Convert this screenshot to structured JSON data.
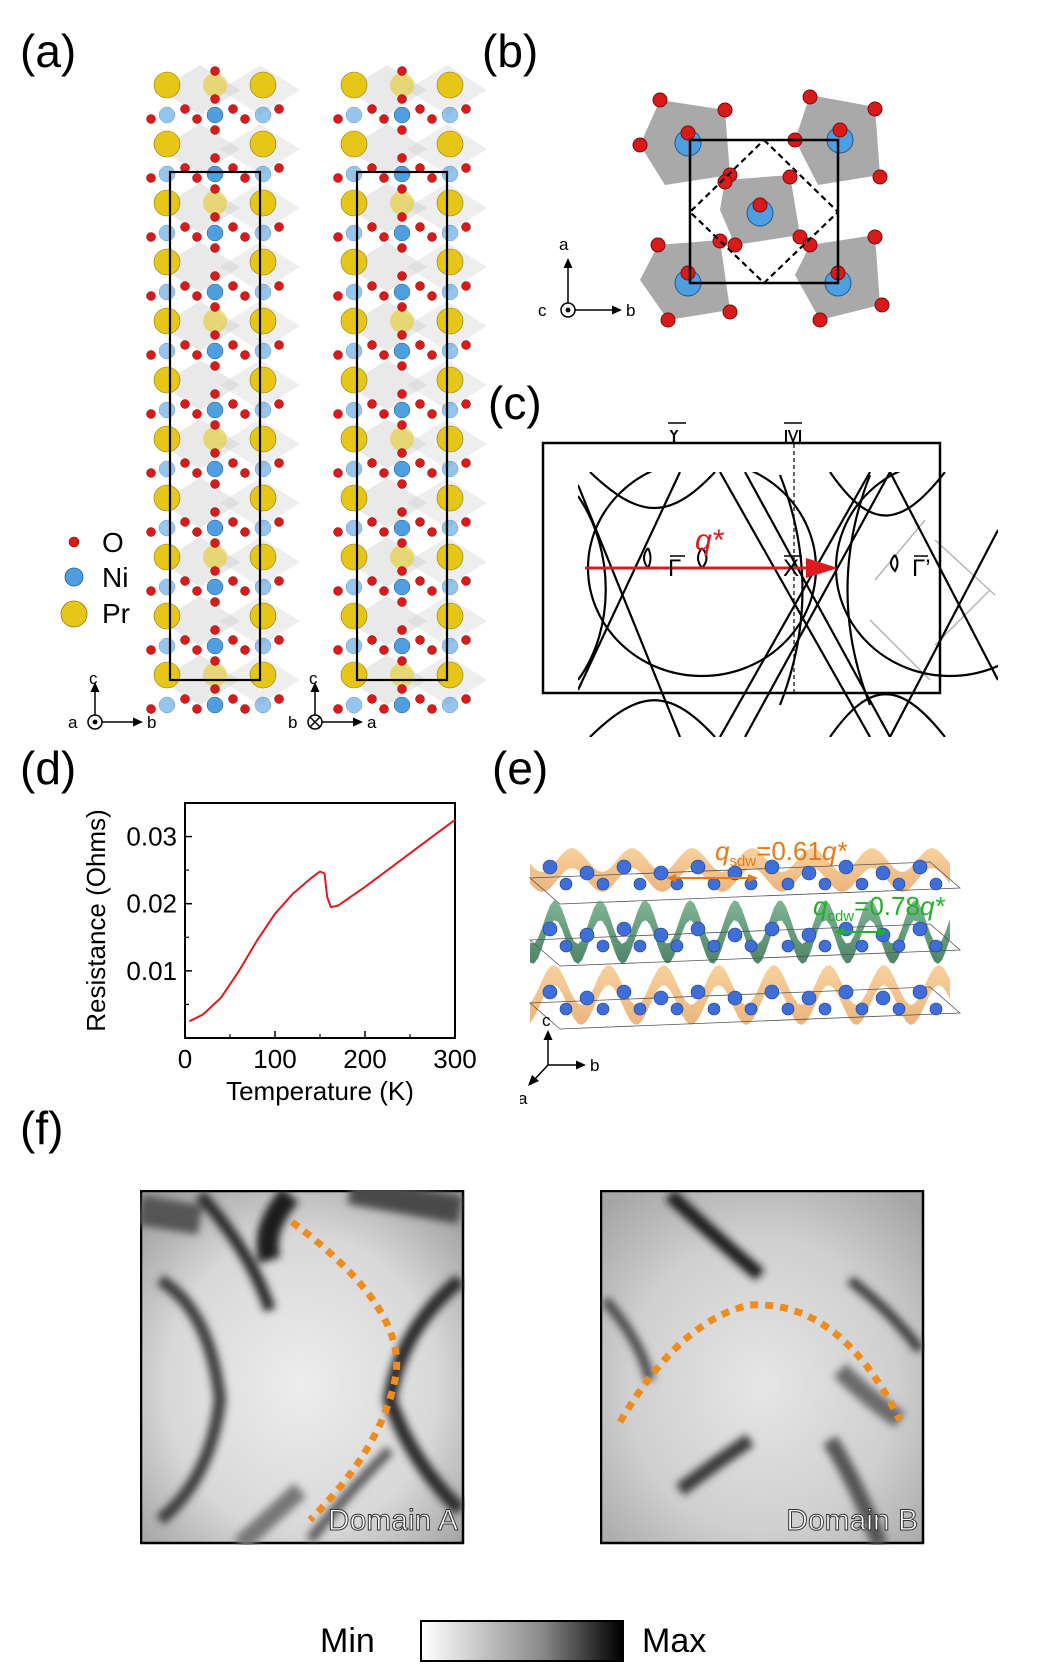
{
  "panels": {
    "a": "(a)",
    "b": "(b)",
    "c": "(c)",
    "d": "(d)",
    "e": "(e)",
    "f": "(f)"
  },
  "panel_a": {
    "legend": [
      {
        "label": "O",
        "color": "#d91a1a"
      },
      {
        "label": "Ni",
        "color": "#4f9fe0"
      },
      {
        "label": "Pr",
        "color": "#e6c617"
      }
    ],
    "axes_left": {
      "up": "c",
      "dot": "a",
      "right": "b"
    },
    "axes_right": {
      "up": "c",
      "cross": "b",
      "right": "a"
    }
  },
  "panel_b": {
    "axes": {
      "up": "a",
      "dot": "c",
      "right": "b"
    }
  },
  "panel_c": {
    "labels": {
      "Y": "Y",
      "M": "M",
      "Gamma": "Γ",
      "X": "X",
      "GammaPrime": "Γ’",
      "q": "q*"
    },
    "arrow_color": "#e0191e"
  },
  "panel_e": {
    "q_sdw": {
      "q": "q",
      "sub": "sdw",
      "rest": "=0.61",
      "qstar": "q*",
      "color": "#e67a16"
    },
    "q_cdw": {
      "q": "q",
      "sub": "cdw",
      "rest": "=0.78",
      "qstar": "q*",
      "color": "#22b02a"
    },
    "axes": {
      "up": "c",
      "right": "b",
      "diag": "a"
    }
  },
  "panel_f": {
    "domain_a": "Domain A",
    "domain_b": "Domain B",
    "colorbar_min": "Min",
    "colorbar_max": "Max",
    "trace_color": "#f08c1e"
  },
  "chart_data": {
    "type": "line",
    "title": "",
    "xlabel": "Temperature (K)",
    "ylabel": "Resistance (Ohms)",
    "xlim": [
      0,
      300
    ],
    "ylim": [
      0,
      0.035
    ],
    "xticks": [
      0,
      100,
      200,
      300
    ],
    "yticks": [
      0.01,
      0.02,
      0.03
    ],
    "ytick_labels": [
      "0.01",
      "0.02",
      "0.03"
    ],
    "xtick_labels": [
      "0",
      "100",
      "200",
      "300"
    ],
    "series": [
      {
        "name": "Resistance",
        "color": "#e0191e",
        "x": [
          5,
          20,
          40,
          60,
          80,
          100,
          120,
          140,
          150,
          155,
          158,
          162,
          170,
          200,
          230,
          260,
          280,
          300
        ],
        "y": [
          0.0025,
          0.0035,
          0.006,
          0.01,
          0.0145,
          0.0185,
          0.0215,
          0.0238,
          0.0248,
          0.0245,
          0.021,
          0.0195,
          0.0197,
          0.0225,
          0.0255,
          0.0285,
          0.0305,
          0.0325
        ]
      }
    ]
  }
}
